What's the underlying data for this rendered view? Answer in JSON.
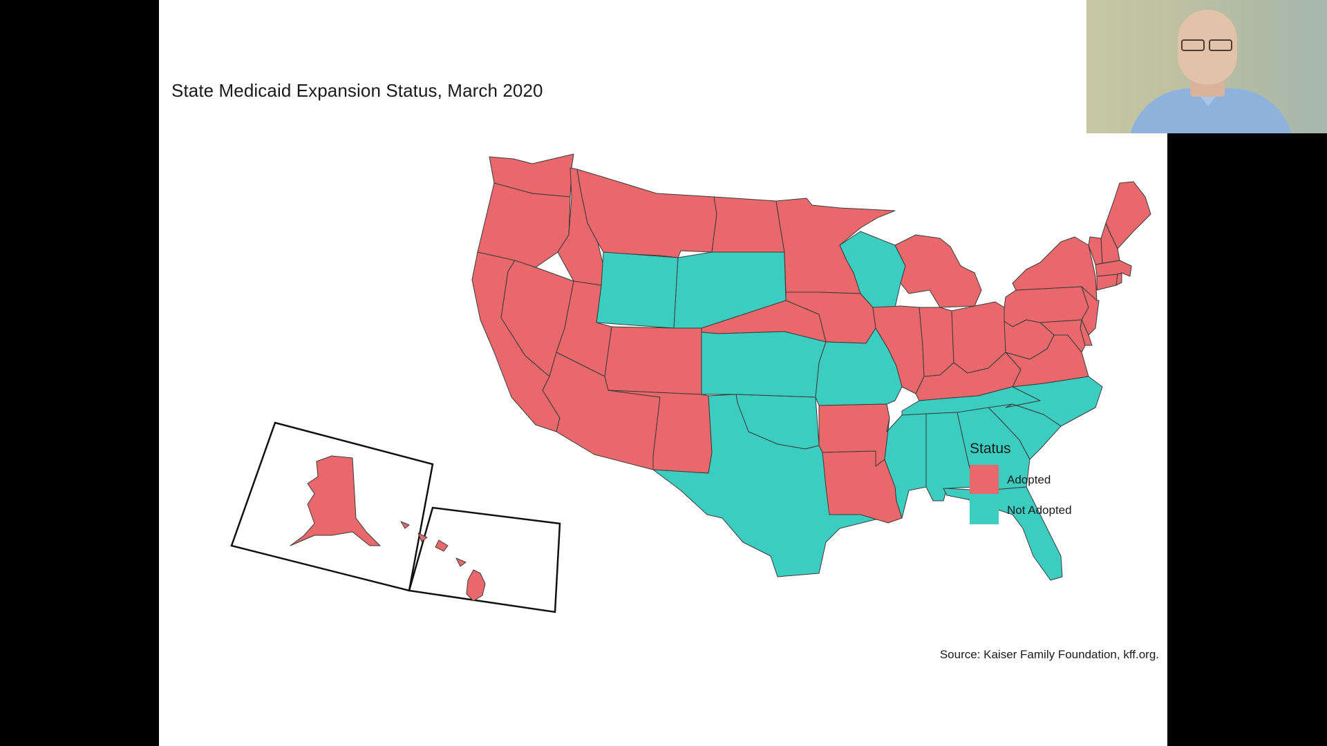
{
  "slide": {
    "title": "State Medicaid Expansion Status, March 2020",
    "source": "Source: Kaiser Family Foundation, kff.org."
  },
  "colors": {
    "adopted": "#E8686B",
    "not_adopted": "#3DCCC0",
    "border": "#3a3a3a"
  },
  "legend": {
    "title": "Status",
    "items": [
      {
        "label": "Adopted",
        "color": "#E8686B"
      },
      {
        "label": "Not Adopted",
        "color": "#3DCCC0"
      }
    ]
  },
  "map_data": {
    "type": "choropleth",
    "region": "United States",
    "adopted": [
      "WA",
      "OR",
      "CA",
      "ID",
      "MT",
      "NV",
      "UT",
      "AZ",
      "CO",
      "NM",
      "ND",
      "NE",
      "MN",
      "IA",
      "IL",
      "IN",
      "MI",
      "OH",
      "KY",
      "WV",
      "VA",
      "PA",
      "NY",
      "NJ",
      "DE",
      "MD",
      "ME",
      "NH",
      "VT",
      "MA",
      "CT",
      "RI",
      "AR",
      "LA",
      "AK",
      "HI"
    ],
    "not_adopted": [
      "WY",
      "SD",
      "KS",
      "OK",
      "TX",
      "MO",
      "WI",
      "TN",
      "MS",
      "AL",
      "GA",
      "FL",
      "SC",
      "NC"
    ]
  },
  "webcam": {
    "visible": true
  }
}
